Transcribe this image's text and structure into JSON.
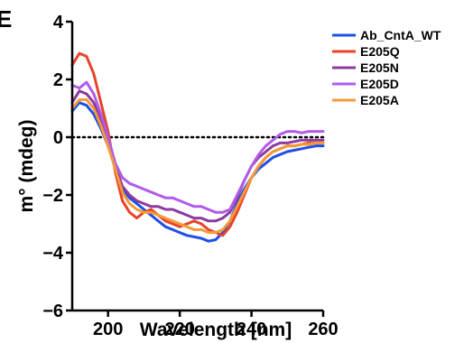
{
  "panel_label": "E",
  "chart_data": {
    "type": "line",
    "xlabel": "Wavelength [nm]",
    "ylabel": "m° (mdeg)",
    "xlim": [
      190,
      260
    ],
    "ylim": [
      -6,
      4
    ],
    "x_ticks": [
      200,
      220,
      240,
      260
    ],
    "x_tick_labels": [
      "200",
      "220",
      "240",
      "260"
    ],
    "y_ticks": [
      -6,
      -4,
      -2,
      0,
      2,
      4
    ],
    "y_tick_labels": [
      "−6",
      "−4",
      "−2",
      "0",
      "2",
      "4"
    ],
    "zero_line": {
      "y": 0,
      "style": "dotted"
    },
    "legend_position": "top-right",
    "series": [
      {
        "name": "Ab_CntA_WT",
        "color": "#1f4fe6",
        "x": [
          190,
          192,
          194,
          196,
          198,
          200,
          202,
          204,
          206,
          208,
          210,
          212,
          214,
          216,
          218,
          220,
          222,
          224,
          226,
          228,
          230,
          232,
          234,
          236,
          238,
          240,
          242,
          244,
          246,
          248,
          250,
          252,
          254,
          256,
          258,
          260
        ],
        "y": [
          0.9,
          1.2,
          1.1,
          0.8,
          0.3,
          -0.3,
          -1.0,
          -1.8,
          -2.1,
          -2.3,
          -2.5,
          -2.7,
          -2.9,
          -3.1,
          -3.2,
          -3.3,
          -3.4,
          -3.45,
          -3.5,
          -3.6,
          -3.55,
          -3.3,
          -2.9,
          -2.3,
          -1.8,
          -1.4,
          -1.1,
          -0.9,
          -0.7,
          -0.6,
          -0.5,
          -0.45,
          -0.4,
          -0.35,
          -0.3,
          -0.3
        ]
      },
      {
        "name": "E205Q",
        "color": "#e8432a",
        "x": [
          190,
          192,
          194,
          196,
          198,
          200,
          202,
          204,
          206,
          208,
          210,
          212,
          214,
          216,
          218,
          220,
          222,
          224,
          226,
          228,
          230,
          232,
          234,
          236,
          238,
          240,
          242,
          244,
          246,
          248,
          250,
          252,
          254,
          256,
          258,
          260
        ],
        "y": [
          2.5,
          2.9,
          2.8,
          2.2,
          1.2,
          0.2,
          -1.2,
          -2.2,
          -2.6,
          -2.8,
          -2.6,
          -2.5,
          -2.7,
          -2.9,
          -3.0,
          -3.1,
          -3.0,
          -2.9,
          -3.0,
          -3.2,
          -3.3,
          -3.4,
          -3.1,
          -2.6,
          -2.0,
          -1.4,
          -1.0,
          -0.7,
          -0.5,
          -0.4,
          -0.3,
          -0.3,
          -0.25,
          -0.2,
          -0.2,
          -0.2
        ]
      },
      {
        "name": "E205N",
        "color": "#8e3a9e",
        "x": [
          190,
          192,
          194,
          196,
          198,
          200,
          202,
          204,
          206,
          208,
          210,
          212,
          214,
          216,
          218,
          220,
          222,
          224,
          226,
          228,
          230,
          232,
          234,
          236,
          238,
          240,
          242,
          244,
          246,
          248,
          250,
          252,
          254,
          256,
          258,
          260
        ],
        "y": [
          1.2,
          1.6,
          1.5,
          1.2,
          0.6,
          -0.1,
          -1.0,
          -1.7,
          -2.0,
          -2.2,
          -2.3,
          -2.4,
          -2.4,
          -2.5,
          -2.5,
          -2.6,
          -2.7,
          -2.8,
          -2.8,
          -2.9,
          -2.9,
          -2.8,
          -2.6,
          -2.1,
          -1.5,
          -1.0,
          -0.7,
          -0.5,
          -0.3,
          -0.2,
          -0.2,
          -0.15,
          -0.1,
          -0.1,
          -0.1,
          -0.1
        ]
      },
      {
        "name": "E205D",
        "color": "#b15ce8",
        "x": [
          190,
          192,
          194,
          196,
          198,
          200,
          202,
          204,
          206,
          208,
          210,
          212,
          214,
          216,
          218,
          220,
          222,
          224,
          226,
          228,
          230,
          232,
          234,
          236,
          238,
          240,
          242,
          244,
          246,
          248,
          250,
          252,
          254,
          256,
          258,
          260
        ],
        "y": [
          1.8,
          1.7,
          1.9,
          1.5,
          0.8,
          0.0,
          -0.9,
          -1.4,
          -1.6,
          -1.7,
          -1.8,
          -1.9,
          -2.0,
          -2.1,
          -2.1,
          -2.2,
          -2.3,
          -2.4,
          -2.4,
          -2.5,
          -2.6,
          -2.6,
          -2.5,
          -2.0,
          -1.5,
          -1.0,
          -0.6,
          -0.3,
          -0.1,
          0.1,
          0.2,
          0.2,
          0.15,
          0.2,
          0.2,
          0.2
        ]
      },
      {
        "name": "E205A",
        "color": "#f29b38",
        "x": [
          190,
          192,
          194,
          196,
          198,
          200,
          202,
          204,
          206,
          208,
          210,
          212,
          214,
          216,
          218,
          220,
          222,
          224,
          226,
          228,
          230,
          232,
          234,
          236,
          238,
          240,
          242,
          244,
          246,
          248,
          250,
          252,
          254,
          256,
          258,
          260
        ],
        "y": [
          1.0,
          1.3,
          1.3,
          1.0,
          0.4,
          -0.3,
          -1.1,
          -1.9,
          -2.3,
          -2.5,
          -2.6,
          -2.6,
          -2.7,
          -2.8,
          -2.9,
          -3.0,
          -3.1,
          -3.2,
          -3.2,
          -3.3,
          -3.3,
          -3.2,
          -2.9,
          -2.4,
          -1.9,
          -1.4,
          -1.0,
          -0.7,
          -0.5,
          -0.4,
          -0.3,
          -0.3,
          -0.25,
          -0.25,
          -0.2,
          -0.2
        ]
      }
    ]
  }
}
